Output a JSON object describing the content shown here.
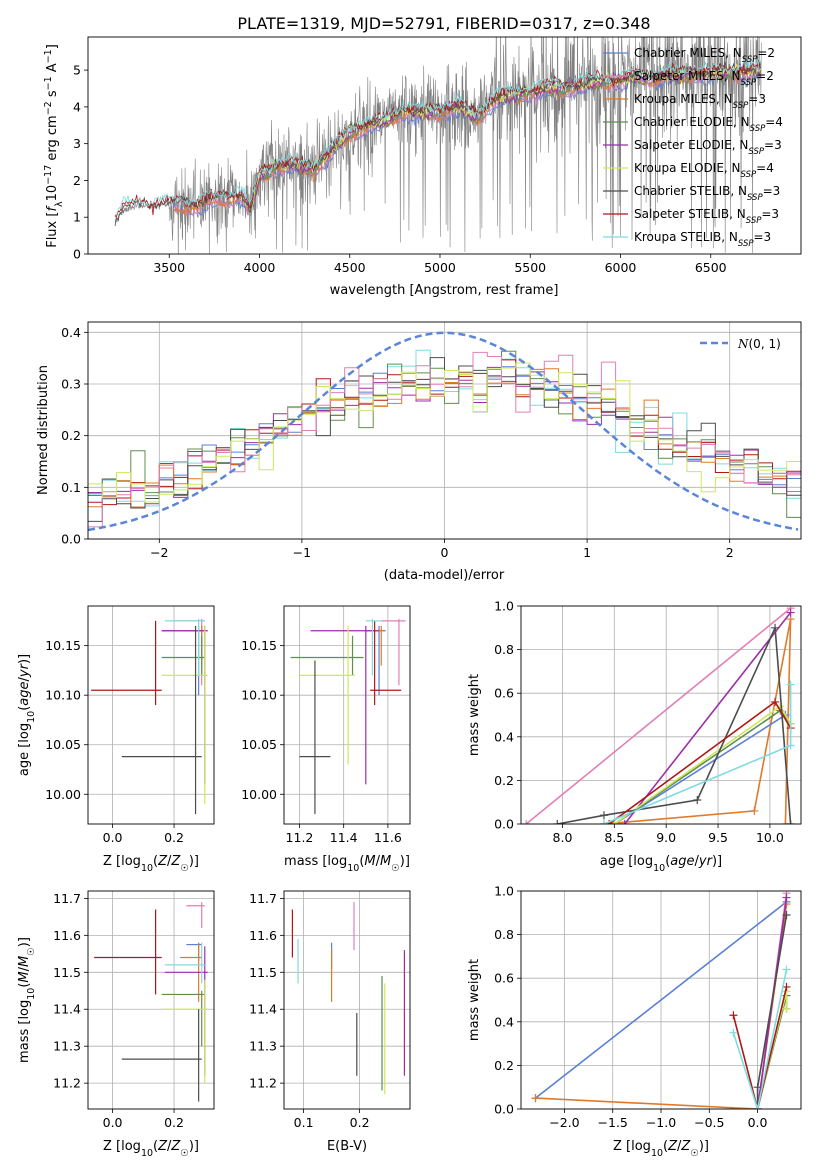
{
  "title": "PLATE=1319, MJD=52791, FIBERID=0317, z=0.348",
  "colors": {
    "Chabrier MILES": "#5b7fd6",
    "Salpeter MILES": "#e27fb4",
    "Kroupa MILES": "#e07a2a",
    "Chabrier ELODIE": "#5f8f4e",
    "Salpeter ELODIE": "#9d2eaa",
    "Kroupa ELODIE": "#cde85c",
    "Chabrier STELIB": "#4d4d4d",
    "Salpeter STELIB": "#b01818",
    "Kroupa STELIB": "#7fdbe0",
    "data": "#808080",
    "gauss": "#5b86d8"
  },
  "chart_data": [
    {
      "id": "spectrum",
      "type": "line",
      "xlabel": "wavelength [Angstrom, rest frame]",
      "ylabel": "Flux [f_λ 10^-17 erg cm^-2 s^-1 A^-1]",
      "xlim": [
        3050,
        7000
      ],
      "ylim": [
        0,
        5.9
      ],
      "xticks": [
        3500,
        4000,
        4500,
        5000,
        5500,
        6000,
        6500
      ],
      "yticks": [
        0,
        1,
        2,
        3,
        4,
        5
      ],
      "grid": false,
      "legend_position": "top-right",
      "legend": [
        {
          "label": "Chabrier MILES, N",
          "sub": "SSP",
          "suffix": "=2"
        },
        {
          "label": "Salpeter MILES, N",
          "sub": "SSP",
          "suffix": "=2"
        },
        {
          "label": "Kroupa MILES, N",
          "sub": "SSP",
          "suffix": "=3"
        },
        {
          "label": "Chabrier ELODIE, N",
          "sub": "SSP",
          "suffix": "=4"
        },
        {
          "label": "Salpeter ELODIE, N",
          "sub": "SSP",
          "suffix": "=3"
        },
        {
          "label": "Kroupa ELODIE, N",
          "sub": "SSP",
          "suffix": "=4"
        },
        {
          "label": "Chabrier STELIB, N",
          "sub": "SSP",
          "suffix": "=3"
        },
        {
          "label": "Salpeter STELIB, N",
          "sub": "SSP",
          "suffix": "=3"
        },
        {
          "label": "Kroupa STELIB, N",
          "sub": "SSP",
          "suffix": "=3"
        }
      ],
      "model_continuum": [
        [
          3200,
          0.9
        ],
        [
          3250,
          1.2
        ],
        [
          3300,
          1.3
        ],
        [
          3400,
          1.3
        ],
        [
          3500,
          1.35
        ],
        [
          3600,
          1.3
        ],
        [
          3700,
          1.4
        ],
        [
          3800,
          1.5
        ],
        [
          3900,
          1.6
        ],
        [
          3950,
          1.2
        ],
        [
          4000,
          2.1
        ],
        [
          4100,
          2.4
        ],
        [
          4200,
          2.4
        ],
        [
          4300,
          2.3
        ],
        [
          4400,
          2.8
        ],
        [
          4500,
          3.3
        ],
        [
          4600,
          3.5
        ],
        [
          4700,
          3.6
        ],
        [
          4800,
          3.9
        ],
        [
          4900,
          3.8
        ],
        [
          5000,
          3.9
        ],
        [
          5100,
          4.0
        ],
        [
          5200,
          3.7
        ],
        [
          5300,
          4.2
        ],
        [
          5400,
          4.3
        ],
        [
          5500,
          4.4
        ],
        [
          5600,
          4.5
        ],
        [
          5700,
          4.5
        ],
        [
          5800,
          4.6
        ],
        [
          5900,
          4.7
        ],
        [
          6000,
          4.7
        ],
        [
          6100,
          4.8
        ],
        [
          6200,
          4.8
        ],
        [
          6400,
          4.9
        ],
        [
          6600,
          4.9
        ],
        [
          6780,
          5.0
        ]
      ]
    },
    {
      "id": "residuals",
      "type": "histogram",
      "xlabel": "(data-model)/error",
      "ylabel": "Normed distribution",
      "xlim": [
        -2.5,
        2.5
      ],
      "ylim": [
        0,
        0.42
      ],
      "xticks": [
        -2,
        -1,
        0,
        1,
        2
      ],
      "yticks": [
        0.0,
        0.1,
        0.2,
        0.3,
        0.4
      ],
      "grid": true,
      "legend_position": "top-right",
      "gauss_label": "N(0,1)",
      "gauss_label_script": "N",
      "gauss_label_rest": "(0, 1)"
    },
    {
      "id": "age_vs_Z",
      "type": "errorbar",
      "xlabel": "Z [log10(Z/Z☉)]",
      "ylabel": "age  [log10(age/yr)]",
      "xlim": [
        -0.08,
        0.33
      ],
      "ylim": [
        9.97,
        10.19
      ],
      "xticks": [
        0.0,
        0.2
      ],
      "yticks": [
        10.0,
        10.05,
        10.1,
        10.15
      ],
      "grid": true,
      "points": [
        {
          "m": "Chabrier MILES",
          "x": 0.28,
          "y": 10.165,
          "xl": 0.16,
          "xh": 0.3,
          "yl": 10.1,
          "yh": 10.17
        },
        {
          "m": "Salpeter MILES",
          "x": 0.29,
          "y": 10.175,
          "xl": 0.2,
          "xh": 0.3,
          "yl": 10.11,
          "yh": 10.177
        },
        {
          "m": "Kroupa MILES",
          "x": 0.29,
          "y": 10.165,
          "xl": 0.25,
          "xh": 0.3,
          "yl": 10.13,
          "yh": 10.17
        },
        {
          "m": "Chabrier ELODIE",
          "x": 0.29,
          "y": 10.138,
          "xl": 0.16,
          "xh": 0.3,
          "yl": 10.12,
          "yh": 10.16
        },
        {
          "m": "Salpeter ELODIE",
          "x": 0.3,
          "y": 10.165,
          "xl": 0.16,
          "xh": 0.31,
          "yl": 10.01,
          "yh": 10.17
        },
        {
          "m": "Kroupa ELODIE",
          "x": 0.3,
          "y": 10.12,
          "xl": 0.16,
          "xh": 0.31,
          "yl": 9.99,
          "yh": 10.17
        },
        {
          "m": "Chabrier STELIB",
          "x": 0.27,
          "y": 10.038,
          "xl": 0.03,
          "xh": 0.29,
          "yl": 9.98,
          "yh": 10.17
        },
        {
          "m": "Salpeter STELIB",
          "x": 0.14,
          "y": 10.105,
          "xl": -0.07,
          "xh": 0.16,
          "yl": 10.09,
          "yh": 10.175
        },
        {
          "m": "Kroupa STELIB",
          "x": 0.28,
          "y": 10.175,
          "xl": 0.17,
          "xh": 0.3,
          "yl": 10.12,
          "yh": 10.177
        }
      ]
    },
    {
      "id": "age_vs_mass",
      "type": "errorbar",
      "xlabel": "mass [log10(M/M☉)]",
      "ylabel": "",
      "xlim": [
        11.13,
        11.7
      ],
      "ylim": [
        9.97,
        10.19
      ],
      "xticks": [
        11.2,
        11.4,
        11.6
      ],
      "yticks": [
        10.0,
        10.05,
        10.1,
        10.15
      ],
      "grid": true,
      "points": [
        {
          "m": "Chabrier MILES",
          "x": 11.56,
          "y": 10.165,
          "xl": 11.5,
          "xh": 11.59,
          "yl": 10.1,
          "yh": 10.17
        },
        {
          "m": "Salpeter MILES",
          "x": 11.65,
          "y": 10.175,
          "xl": 11.57,
          "xh": 11.68,
          "yl": 10.11,
          "yh": 10.177
        },
        {
          "m": "Kroupa MILES",
          "x": 11.57,
          "y": 10.165,
          "xl": 11.54,
          "xh": 11.58,
          "yl": 10.13,
          "yh": 10.17
        },
        {
          "m": "Chabrier ELODIE",
          "x": 11.44,
          "y": 10.138,
          "xl": 11.16,
          "xh": 11.49,
          "yl": 10.12,
          "yh": 10.16
        },
        {
          "m": "Salpeter ELODIE",
          "x": 11.5,
          "y": 10.165,
          "xl": 11.25,
          "xh": 11.56,
          "yl": 10.01,
          "yh": 10.17
        },
        {
          "m": "Kroupa ELODIE",
          "x": 11.42,
          "y": 10.12,
          "xl": 11.2,
          "xh": 11.45,
          "yl": 10.03,
          "yh": 10.17
        },
        {
          "m": "Chabrier STELIB",
          "x": 11.27,
          "y": 10.038,
          "xl": 11.2,
          "xh": 11.34,
          "yl": 9.98,
          "yh": 10.135
        },
        {
          "m": "Salpeter STELIB",
          "x": 11.54,
          "y": 10.105,
          "xl": 11.52,
          "xh": 11.66,
          "yl": 10.09,
          "yh": 10.175
        },
        {
          "m": "Kroupa STELIB",
          "x": 11.53,
          "y": 10.175,
          "xl": 11.5,
          "xh": 11.57,
          "yl": 10.12,
          "yh": 10.177
        }
      ]
    },
    {
      "id": "weight_vs_age",
      "type": "line",
      "xlabel": "age  [log10(age/yr)]",
      "ylabel": "mass weight",
      "xlim": [
        7.6,
        10.3
      ],
      "ylim": [
        0.0,
        1.0
      ],
      "xticks": [
        8.0,
        8.5,
        9.0,
        9.5,
        10.0
      ],
      "yticks": [
        0.0,
        0.2,
        0.4,
        0.6,
        0.8,
        1.0
      ],
      "grid": true,
      "series": [
        {
          "m": "Salpeter MILES",
          "x": [
            7.65,
            10.2
          ],
          "y": [
            0.0,
            0.99
          ]
        },
        {
          "m": "Kroupa MILES",
          "x": [
            8.4,
            9.85,
            10.2,
            10.15
          ],
          "y": [
            0.0,
            0.06,
            0.94,
            0.0
          ]
        },
        {
          "m": "Chabrier MILES",
          "x": [
            8.5,
            10.15
          ],
          "y": [
            0.0,
            0.5
          ]
        },
        {
          "m": "Chabrier ELODIE",
          "x": [
            8.5,
            10.1,
            10.2
          ],
          "y": [
            0.0,
            0.52,
            0.46
          ]
        },
        {
          "m": "Salpeter ELODIE",
          "x": [
            8.6,
            10.2
          ],
          "y": [
            0.0,
            0.97
          ]
        },
        {
          "m": "Kroupa ELODIE",
          "x": [
            8.5,
            10.1,
            10.2
          ],
          "y": [
            0.0,
            0.54,
            0.46
          ]
        },
        {
          "m": "Chabrier STELIB",
          "x": [
            7.95,
            8.4,
            9.3,
            10.05,
            10.2
          ],
          "y": [
            0.0,
            0.04,
            0.11,
            0.9,
            0.0
          ]
        },
        {
          "m": "Salpeter STELIB",
          "x": [
            8.45,
            10.05,
            10.2
          ],
          "y": [
            0.0,
            0.56,
            0.44
          ]
        },
        {
          "m": "Kroupa STELIB",
          "x": [
            8.4,
            10.2,
            10.2
          ],
          "y": [
            0.0,
            0.36,
            0.64
          ]
        }
      ]
    },
    {
      "id": "mass_vs_Z",
      "type": "errorbar",
      "xlabel": "Z [log10(Z/Z☉)]",
      "ylabel": "mass [log10(M/M☉)]",
      "xlim": [
        -0.08,
        0.33
      ],
      "ylim": [
        11.13,
        11.72
      ],
      "xticks": [
        0.0,
        0.2
      ],
      "yticks": [
        11.2,
        11.3,
        11.4,
        11.5,
        11.6,
        11.7
      ],
      "grid": true,
      "points": [
        {
          "m": "Chabrier MILES",
          "x": 0.28,
          "y": 11.575,
          "xl": 0.24,
          "xh": 0.29,
          "yl": 11.53,
          "yh": 11.58
        },
        {
          "m": "Salpeter MILES",
          "x": 0.29,
          "y": 11.68,
          "xl": 0.24,
          "xh": 0.3,
          "yl": 11.62,
          "yh": 11.69
        },
        {
          "m": "Kroupa MILES",
          "x": 0.28,
          "y": 11.54,
          "xl": 0.22,
          "xh": 0.29,
          "yl": 11.42,
          "yh": 11.58
        },
        {
          "m": "Chabrier ELODIE",
          "x": 0.29,
          "y": 11.44,
          "xl": 0.16,
          "xh": 0.3,
          "yl": 11.3,
          "yh": 11.45
        },
        {
          "m": "Salpeter ELODIE",
          "x": 0.3,
          "y": 11.5,
          "xl": 0.17,
          "xh": 0.31,
          "yl": 11.22,
          "yh": 11.57
        },
        {
          "m": "Kroupa ELODIE",
          "x": 0.3,
          "y": 11.4,
          "xl": 0.16,
          "xh": 0.31,
          "yl": 11.2,
          "yh": 11.48
        },
        {
          "m": "Chabrier STELIB",
          "x": 0.28,
          "y": 11.265,
          "xl": 0.03,
          "xh": 0.29,
          "yl": 11.15,
          "yh": 11.4
        },
        {
          "m": "Salpeter STELIB",
          "x": 0.14,
          "y": 11.54,
          "xl": -0.06,
          "xh": 0.16,
          "yl": 11.44,
          "yh": 11.67
        },
        {
          "m": "Kroupa STELIB",
          "x": 0.29,
          "y": 11.52,
          "xl": 0.17,
          "xh": 0.3,
          "yl": 11.47,
          "yh": 11.58
        }
      ]
    },
    {
      "id": "mass_vs_ebv",
      "type": "errorbar",
      "xlabel": "E(B-V)",
      "ylabel": "",
      "xlim": [
        0.065,
        0.29
      ],
      "ylim": [
        11.13,
        11.72
      ],
      "xticks": [
        0.1,
        0.2
      ],
      "yticks": [
        11.2,
        11.3,
        11.4,
        11.5,
        11.6,
        11.7
      ],
      "grid": true,
      "points": [
        {
          "m": "Chabrier MILES",
          "x": 0.15,
          "yl": 11.51,
          "yh": 11.58
        },
        {
          "m": "Salpeter MILES",
          "x": 0.19,
          "yl": 11.56,
          "yh": 11.69
        },
        {
          "m": "Kroupa MILES",
          "x": 0.15,
          "yl": 11.42,
          "yh": 11.56
        },
        {
          "m": "Chabrier ELODIE",
          "x": 0.24,
          "yl": 11.18,
          "yh": 11.49
        },
        {
          "m": "Salpeter ELODIE",
          "x": 0.28,
          "yl": 11.22,
          "yh": 11.56
        },
        {
          "m": "Kroupa ELODIE",
          "x": 0.245,
          "yl": 11.17,
          "yh": 11.47
        },
        {
          "m": "Chabrier STELIB",
          "x": 0.195,
          "yl": 11.22,
          "yh": 11.39
        },
        {
          "m": "Salpeter STELIB",
          "x": 0.08,
          "yl": 11.54,
          "yh": 11.67
        },
        {
          "m": "Kroupa STELIB",
          "x": 0.09,
          "yl": 11.47,
          "yh": 11.59
        }
      ]
    },
    {
      "id": "weight_vs_Z",
      "type": "line",
      "xlabel": "Z [log10(Z/Z☉)]",
      "ylabel": "mass weight",
      "xlim": [
        -2.45,
        0.45
      ],
      "ylim": [
        0.0,
        1.0
      ],
      "xticks": [
        -2.0,
        -1.5,
        -1.0,
        -0.5,
        0.0
      ],
      "yticks": [
        0.0,
        0.2,
        0.4,
        0.6,
        0.8,
        1.0
      ],
      "grid": true,
      "series": [
        {
          "m": "Chabrier MILES",
          "x": [
            -2.3,
            0.3
          ],
          "y": [
            0.05,
            0.95
          ]
        },
        {
          "m": "Kroupa MILES",
          "x": [
            -2.3,
            0.0,
            0.3
          ],
          "y": [
            0.05,
            0.0,
            0.94
          ]
        },
        {
          "m": "Salpeter MILES",
          "x": [
            0.0,
            0.3
          ],
          "y": [
            0.0,
            0.99
          ]
        },
        {
          "m": "Chabrier ELODIE",
          "x": [
            0.0,
            0.3,
            0.3
          ],
          "y": [
            0.0,
            0.52,
            0.46
          ]
        },
        {
          "m": "Salpeter ELODIE",
          "x": [
            0.0,
            0.3
          ],
          "y": [
            0.0,
            0.97
          ]
        },
        {
          "m": "Kroupa ELODIE",
          "x": [
            0.0,
            0.3,
            0.3
          ],
          "y": [
            0.0,
            0.54,
            0.46
          ]
        },
        {
          "m": "Chabrier STELIB",
          "x": [
            0.0,
            0.0,
            0.3
          ],
          "y": [
            0.0,
            0.1,
            0.89
          ]
        },
        {
          "m": "Salpeter STELIB",
          "x": [
            -0.25,
            0.0,
            0.3
          ],
          "y": [
            0.43,
            0.0,
            0.56
          ]
        },
        {
          "m": "Kroupa STELIB",
          "x": [
            -0.25,
            0.0,
            0.3
          ],
          "y": [
            0.35,
            0.0,
            0.64
          ]
        }
      ]
    }
  ]
}
